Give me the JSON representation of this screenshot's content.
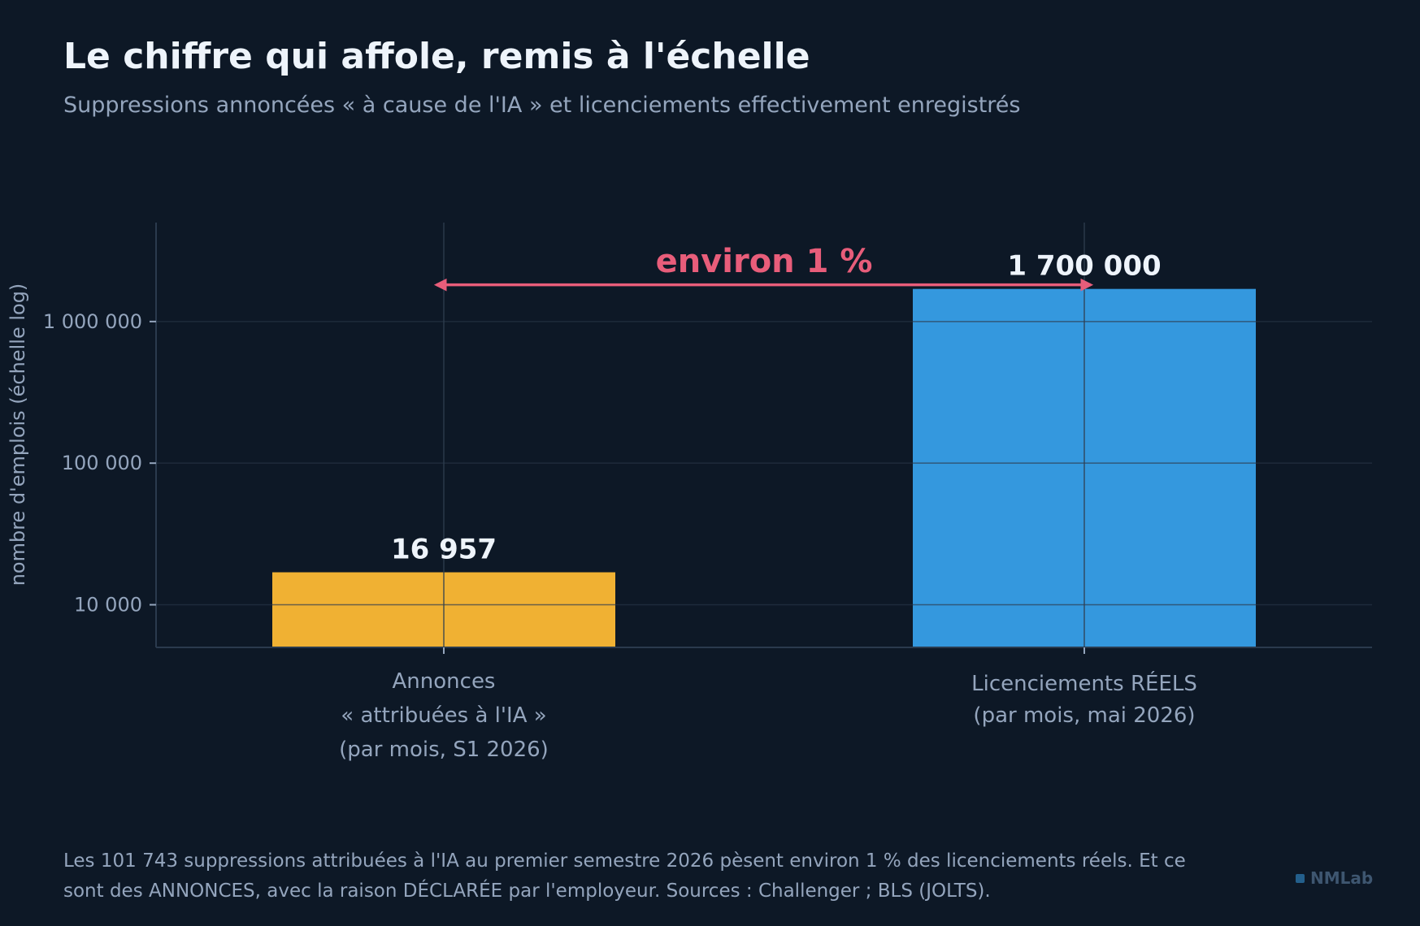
{
  "title": "Le chiffre qui affole, remis à l'échelle",
  "subtitle": "Suppressions annoncées « à cause de l'IA » et licenciements effectivement enregistrés",
  "colors": {
    "background": "#0d1826",
    "announced_bar": "#f0b133",
    "real_bar": "#3498de",
    "annotation": "#e85d7a",
    "text_muted": "#94a5bd",
    "text_bright": "#eef4fb",
    "grid": "#1e2b3b"
  },
  "chart_data": {
    "type": "bar",
    "scale": "log",
    "ylabel": "nombre d'emplois (échelle log)",
    "ylim": [
      5000,
      5000000
    ],
    "yticks": [
      10000,
      100000,
      1000000
    ],
    "ytick_labels": [
      "10 000",
      "100 000",
      "1 000 000"
    ],
    "grid": true,
    "categories": [
      [
        "Annonces",
        "« attribuées à l'IA »",
        "(par mois, S1 2026)"
      ],
      [
        "Licenciements RÉELS",
        "(par mois, mai 2026)"
      ]
    ],
    "values": [
      16957,
      1700000
    ],
    "value_labels": [
      "16 957",
      "1 700 000"
    ],
    "bar_colors": [
      "#f0b133",
      "#3498de"
    ],
    "annotation": {
      "text": "environ 1 %",
      "arrow": "double-headed, from announcement level to real-layoff level",
      "color": "#e85d7a"
    }
  },
  "footnote": "Les 101 743 suppressions attribuées à l'IA au premier semestre 2026 pèsent environ 1 % des licenciements réels. Et ce sont des ANNONCES, avec la raison DÉCLARÉE par l'employeur. Sources : Challenger ; BLS (JOLTS).",
  "brand": "NMLab"
}
